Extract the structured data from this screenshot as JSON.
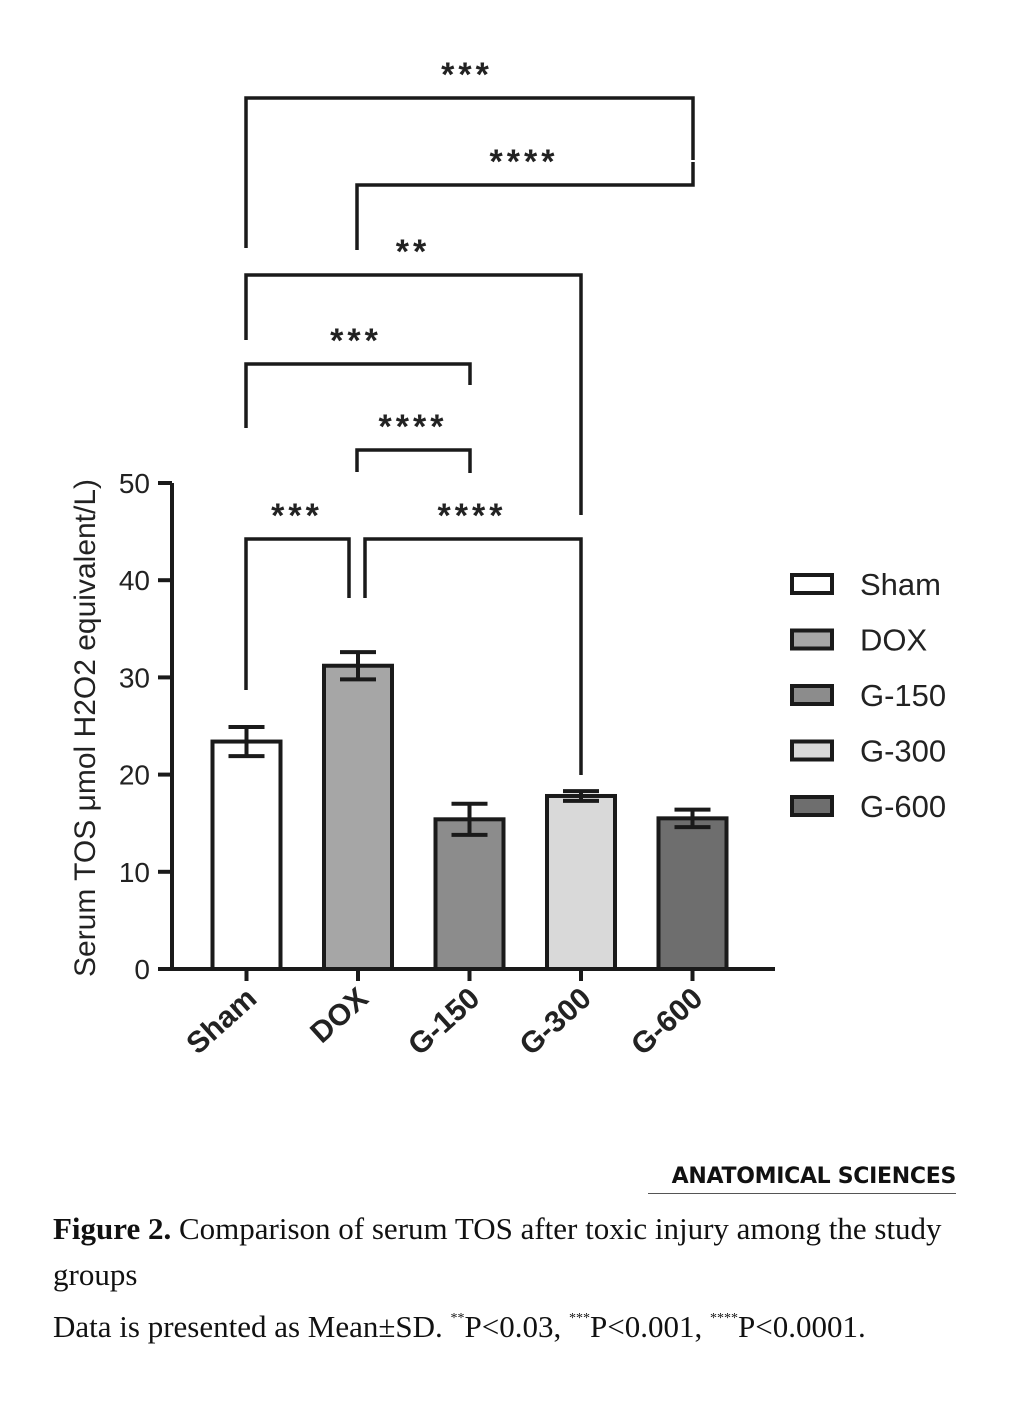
{
  "chart_data": {
    "type": "bar",
    "categories": [
      "Sham",
      "DOX",
      "G-150",
      "G-300",
      "G-600"
    ],
    "values": [
      23.4,
      31.2,
      15.4,
      17.8,
      15.5
    ],
    "errors": [
      1.5,
      1.4,
      1.6,
      0.5,
      0.9
    ],
    "colors": [
      "#ffffff",
      "#a6a6a6",
      "#8c8c8c",
      "#d9d9d9",
      "#6e6e6e"
    ],
    "ylabel": "Serum TOS μmol H2O2 equivalent/L)",
    "ylim": [
      0,
      50
    ],
    "yticks": [
      "0",
      "10",
      "20",
      "30",
      "40",
      "50"
    ],
    "legend": [
      "Sham",
      "DOX",
      "G-150",
      "G-300",
      "G-600"
    ],
    "legend_position": "right",
    "significance": [
      {
        "from": "Sham",
        "to": "G-600",
        "label": "***"
      },
      {
        "from": "DOX",
        "to": "G-600",
        "label": "****"
      },
      {
        "from": "Sham",
        "to": "G-300",
        "label": "**"
      },
      {
        "from": "Sham",
        "to": "G-150",
        "label": "***"
      },
      {
        "from": "DOX",
        "to": "G-150",
        "label": "****"
      },
      {
        "from": "Sham",
        "to": "DOX",
        "label": "***"
      },
      {
        "from": "DOX",
        "to": "G-300",
        "label": "****"
      }
    ]
  },
  "journal": "ANATOMICAL SCIENCES",
  "caption": {
    "figure_label": "Figure 2.",
    "title": "Comparison of serum TOS after toxic injury among the study groups",
    "note_prefix": "Data is presented as Mean±SD.",
    "p1_mark": "**",
    "p1_text": "P<0.03,",
    "p2_mark": "***",
    "p2_text": "P<0.001,",
    "p3_mark": "****",
    "p3_text": "P<0.0001."
  }
}
